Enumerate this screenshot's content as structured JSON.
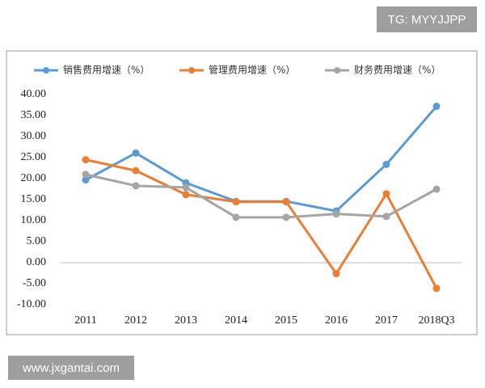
{
  "chart_data": {
    "type": "line",
    "categories": [
      "2011",
      "2012",
      "2013",
      "2014",
      "2015",
      "2016",
      "2017",
      "2018Q3"
    ],
    "series": [
      {
        "name": "销售费用增速（%）",
        "color": "#5b9bd5",
        "values": [
          19.7,
          26.1,
          19.0,
          14.6,
          14.6,
          12.3,
          23.4,
          37.2
        ]
      },
      {
        "name": "管理费用增速（%）",
        "color": "#ed7d31",
        "values": [
          24.5,
          21.9,
          16.2,
          14.5,
          14.5,
          -2.6,
          16.4,
          -6.1
        ]
      },
      {
        "name": "财务费用增速（%）",
        "color": "#a5a5a5",
        "values": [
          21.0,
          18.3,
          17.9,
          10.8,
          10.8,
          11.6,
          11.0,
          17.5
        ]
      }
    ],
    "ylim": [
      -10,
      40
    ],
    "yticks": [
      {
        "value": -10,
        "label": "-10.00"
      },
      {
        "value": -5,
        "label": "-5.00"
      },
      {
        "value": 0,
        "label": "0.00"
      },
      {
        "value": 5,
        "label": "5.00"
      },
      {
        "value": 10,
        "label": "10.00"
      },
      {
        "value": 15,
        "label": "15.00"
      },
      {
        "value": 20,
        "label": "20.00"
      },
      {
        "value": 25,
        "label": "25.00"
      },
      {
        "value": 30,
        "label": "30.00"
      },
      {
        "value": 35,
        "label": "35.00"
      },
      {
        "value": 40,
        "label": "40.00"
      }
    ],
    "grid": false,
    "legend": "top"
  },
  "watermarks": [
    "TG: MYYJJPP",
    "www.jxgantai.com"
  ]
}
